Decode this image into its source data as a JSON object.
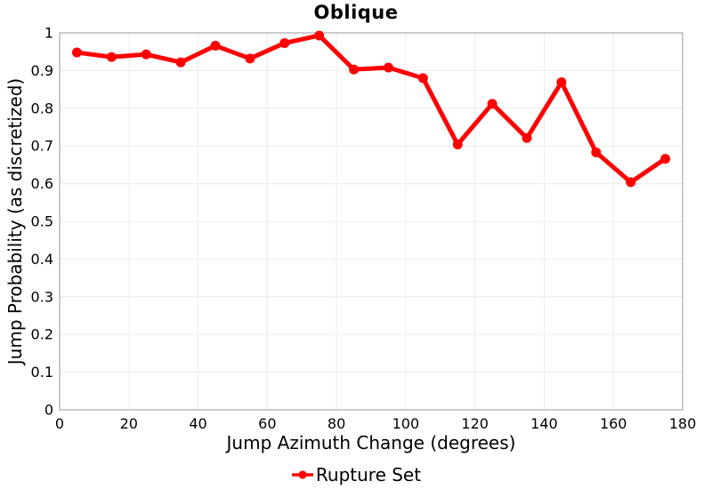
{
  "chart_data": {
    "type": "line",
    "title": "Oblique",
    "xlabel": "Jump Azimuth Change (degrees)",
    "ylabel": "Jump Probability (as discretized)",
    "xlim": [
      0,
      180
    ],
    "ylim": [
      0,
      1
    ],
    "grid": true,
    "legend_position": "bottom",
    "x": [
      5,
      15,
      25,
      35,
      45,
      55,
      65,
      75,
      85,
      95,
      105,
      115,
      125,
      135,
      145,
      155,
      165,
      175
    ],
    "series": [
      {
        "name": "Rupture Set",
        "color": "#ff0000",
        "values": [
          0.948,
          0.936,
          0.943,
          0.922,
          0.966,
          0.932,
          0.973,
          0.993,
          0.903,
          0.908,
          0.88,
          0.704,
          0.812,
          0.721,
          0.869,
          0.683,
          0.604,
          0.666
        ]
      }
    ],
    "xticks": {
      "values": [
        0,
        20,
        40,
        60,
        80,
        100,
        120,
        140,
        160,
        180
      ],
      "labels": [
        "0",
        "20",
        "40",
        "60",
        "80",
        "100",
        "120",
        "140",
        "160",
        "180"
      ]
    },
    "yticks": {
      "values": [
        0,
        0.1,
        0.2,
        0.3,
        0.4,
        0.5,
        0.6,
        0.7,
        0.8,
        0.9,
        1
      ],
      "labels": [
        "0",
        "0.1",
        "0.2",
        "0.3",
        "0.4",
        "0.5",
        "0.6",
        "0.7",
        "0.8",
        "0.9",
        "1"
      ]
    },
    "colors": {
      "series": "#ff0000",
      "grid": "#ececec",
      "border": "#a9a9a9",
      "text": "#000000",
      "background": "#ffffff"
    }
  }
}
